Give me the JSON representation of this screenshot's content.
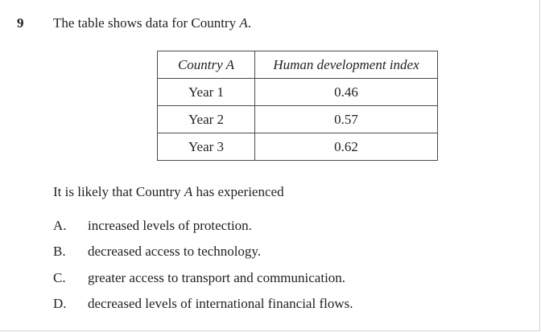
{
  "question": {
    "number": "9",
    "stem_prefix": "The table shows data for Country ",
    "stem_country": "A",
    "stem_suffix": "."
  },
  "table": {
    "headers": [
      "Country A",
      "Human development index"
    ],
    "rows": [
      [
        "Year 1",
        "0.46"
      ],
      [
        "Year 2",
        "0.57"
      ],
      [
        "Year 3",
        "0.62"
      ]
    ]
  },
  "lead": {
    "prefix": "It is likely that Country ",
    "country": "A",
    "suffix": " has experienced"
  },
  "options": [
    {
      "letter": "A.",
      "text": "increased levels of protection."
    },
    {
      "letter": "B.",
      "text": "decreased access to technology."
    },
    {
      "letter": "C.",
      "text": "greater access to transport and communication."
    },
    {
      "letter": "D.",
      "text": "decreased levels of international financial flows."
    }
  ]
}
